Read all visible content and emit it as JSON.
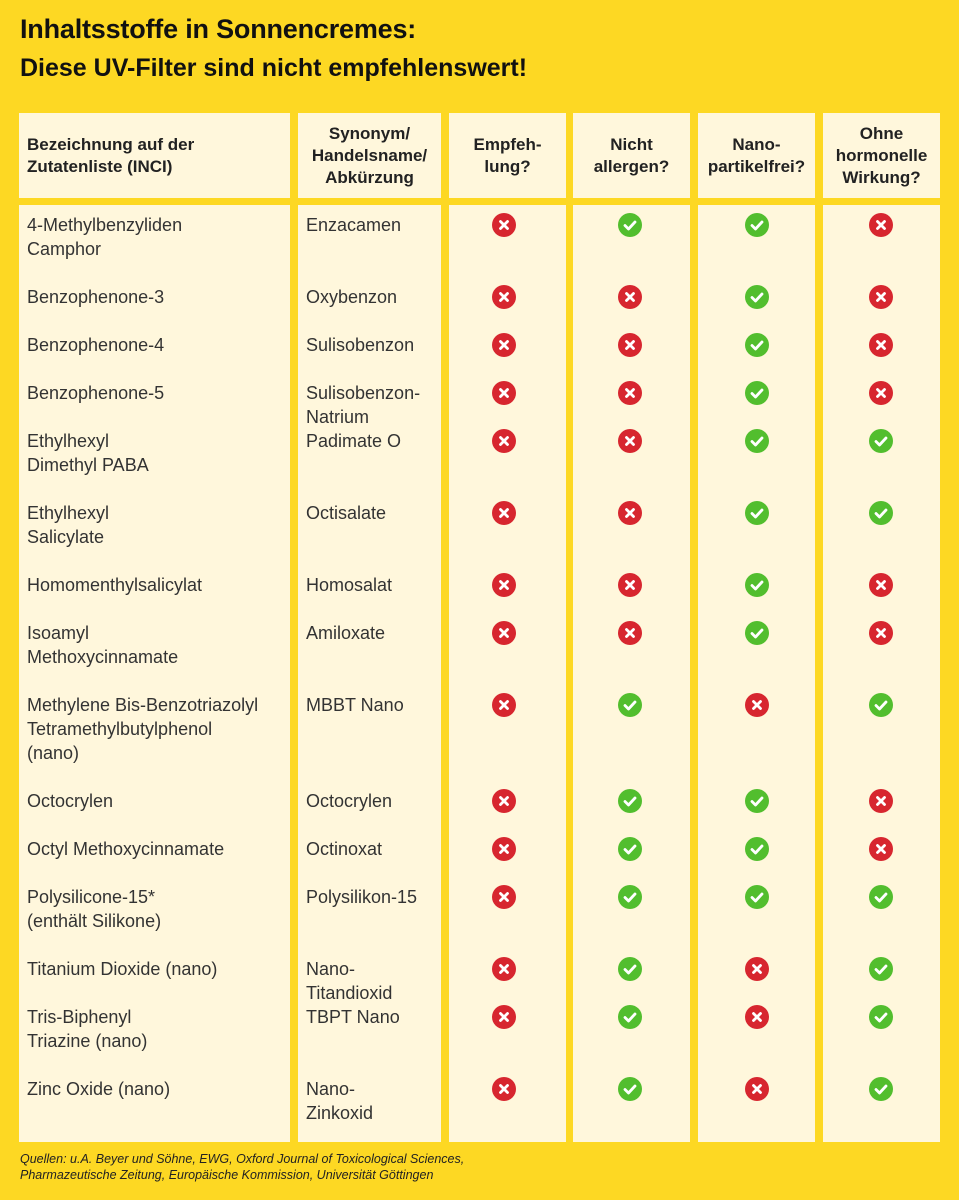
{
  "title": "Inhaltsstoffe in Sonnencremes:",
  "subtitle": "Diese UV-Filter sind nicht empfehlenswert!",
  "headers": {
    "inci": "Bezeichnung auf der\nZutatenliste (INCI)",
    "synonym": "Synonym/\nHandelsname/\nAbkürzung",
    "empfehlung": "Empfeh-\nlung?",
    "allergen": "Nicht\nallergen?",
    "nano": "Nano-\npartikelfrei?",
    "hormon": "Ohne\nhormonelle\nWirkung?"
  },
  "colors": {
    "background": "#fdd823",
    "cell": "#fff7dc",
    "yes": "#52be2e",
    "no": "#d7262f"
  },
  "icons": {
    "yes": "check-icon",
    "no": "cross-icon"
  },
  "rows": [
    {
      "inci": "4-Methylbenzyliden\nCamphor",
      "synonym": "Enzacamen",
      "empfehlung": false,
      "allergen": true,
      "nano": true,
      "hormon": false
    },
    {
      "inci": "Benzophenone-3",
      "synonym": "Oxybenzon",
      "empfehlung": false,
      "allergen": false,
      "nano": true,
      "hormon": false
    },
    {
      "inci": "Benzophenone-4",
      "synonym": "Sulisobenzon",
      "empfehlung": false,
      "allergen": false,
      "nano": true,
      "hormon": false
    },
    {
      "inci": "Benzophenone-5",
      "synonym": "Sulisobenzon-\nNatrium",
      "empfehlung": false,
      "allergen": false,
      "nano": true,
      "hormon": false
    },
    {
      "inci": "Ethylhexyl\nDimethyl PABA",
      "synonym": "Padimate O",
      "empfehlung": false,
      "allergen": false,
      "nano": true,
      "hormon": true
    },
    {
      "inci": "Ethylhexyl\nSalicylate",
      "synonym": "Octisalate",
      "empfehlung": false,
      "allergen": false,
      "nano": true,
      "hormon": true
    },
    {
      "inci": "Homomenthylsalicylat",
      "synonym": "Homosalat",
      "empfehlung": false,
      "allergen": false,
      "nano": true,
      "hormon": false
    },
    {
      "inci": "Isoamyl\nMethoxycinnamate",
      "synonym": "Amiloxate",
      "empfehlung": false,
      "allergen": false,
      "nano": true,
      "hormon": false
    },
    {
      "inci": "Methylene Bis-Benzotriazolyl\nTetramethylbutylphenol\n(nano)",
      "synonym": "MBBT Nano",
      "empfehlung": false,
      "allergen": true,
      "nano": false,
      "hormon": true
    },
    {
      "inci": "Octocrylen",
      "synonym": "Octocrylen",
      "empfehlung": false,
      "allergen": true,
      "nano": true,
      "hormon": false
    },
    {
      "inci": "Octyl Methoxycinnamate",
      "synonym": "Octinoxat",
      "empfehlung": false,
      "allergen": true,
      "nano": true,
      "hormon": false
    },
    {
      "inci": "Polysilicone-15*\n(enthält Silikone)",
      "synonym": "Polysilikon-15",
      "empfehlung": false,
      "allergen": true,
      "nano": true,
      "hormon": true
    },
    {
      "inci": "Titanium Dioxide (nano)",
      "synonym": "Nano-\nTitandioxid",
      "empfehlung": false,
      "allergen": true,
      "nano": false,
      "hormon": true
    },
    {
      "inci": "Tris-Biphenyl\nTriazine (nano)",
      "synonym": "TBPT Nano",
      "empfehlung": false,
      "allergen": true,
      "nano": false,
      "hormon": true
    },
    {
      "inci": "Zinc Oxide (nano)",
      "synonym": "Nano-\nZinkoxid",
      "empfehlung": false,
      "allergen": true,
      "nano": false,
      "hormon": true
    }
  ],
  "footer": "Quellen: u.A. Beyer und Söhne, EWG, Oxford Journal of Toxicological Sciences,\nPharmazeutische Zeitung, Europäische Kommission, Universität Göttingen"
}
